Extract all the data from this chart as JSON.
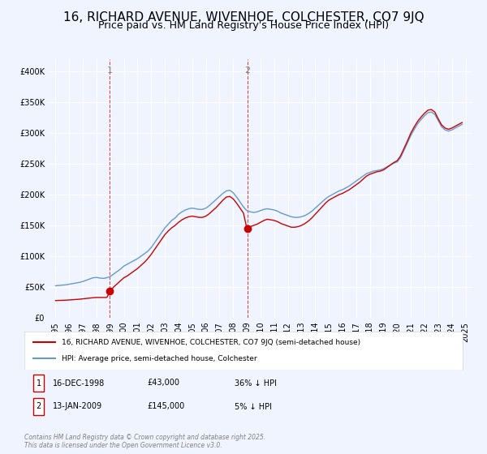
{
  "title": "16, RICHARD AVENUE, WIVENHOE, COLCHESTER, CO7 9JQ",
  "subtitle": "Price paid vs. HM Land Registry's House Price Index (HPI)",
  "title_fontsize": 11,
  "subtitle_fontsize": 9,
  "background_color": "#f0f4ff",
  "plot_bg_color": "#f0f4ff",
  "legend_entry1": "16, RICHARD AVENUE, WIVENHOE, COLCHESTER, CO7 9JQ (semi-detached house)",
  "legend_entry2": "HPI: Average price, semi-detached house, Colchester",
  "footnote": "Contains HM Land Registry data © Crown copyright and database right 2025.\nThis data is licensed under the Open Government Licence v3.0.",
  "annotation1_label": "1",
  "annotation1_date": "16-DEC-1998",
  "annotation1_price": "£43,000",
  "annotation1_hpi": "36% ↓ HPI",
  "annotation2_label": "2",
  "annotation2_date": "13-JAN-2009",
  "annotation2_price": "£145,000",
  "annotation2_hpi": "5% ↓ HPI",
  "sale1_x": 1998.96,
  "sale1_y": 43000,
  "sale2_x": 2009.04,
  "sale2_y": 145000,
  "red_color": "#cc0000",
  "blue_color": "#6699cc",
  "hpi_years": [
    1995,
    1995.25,
    1995.5,
    1995.75,
    1996,
    1996.25,
    1996.5,
    1996.75,
    1997,
    1997.25,
    1997.5,
    1997.75,
    1998,
    1998.25,
    1998.5,
    1998.75,
    1999,
    1999.25,
    1999.5,
    1999.75,
    2000,
    2000.25,
    2000.5,
    2000.75,
    2001,
    2001.25,
    2001.5,
    2001.75,
    2002,
    2002.25,
    2002.5,
    2002.75,
    2003,
    2003.25,
    2003.5,
    2003.75,
    2004,
    2004.25,
    2004.5,
    2004.75,
    2005,
    2005.25,
    2005.5,
    2005.75,
    2006,
    2006.25,
    2006.5,
    2006.75,
    2007,
    2007.25,
    2007.5,
    2007.75,
    2008,
    2008.25,
    2008.5,
    2008.75,
    2009,
    2009.25,
    2009.5,
    2009.75,
    2010,
    2010.25,
    2010.5,
    2010.75,
    2011,
    2011.25,
    2011.5,
    2011.75,
    2012,
    2012.25,
    2012.5,
    2012.75,
    2013,
    2013.25,
    2013.5,
    2013.75,
    2014,
    2014.25,
    2014.5,
    2014.75,
    2015,
    2015.25,
    2015.5,
    2015.75,
    2016,
    2016.25,
    2016.5,
    2016.75,
    2017,
    2017.25,
    2017.5,
    2017.75,
    2018,
    2018.25,
    2018.5,
    2018.75,
    2019,
    2019.25,
    2019.5,
    2019.75,
    2020,
    2020.25,
    2020.5,
    2020.75,
    2021,
    2021.25,
    2021.5,
    2021.75,
    2022,
    2022.25,
    2022.5,
    2022.75,
    2023,
    2023.25,
    2023.5,
    2023.75,
    2024,
    2024.25,
    2024.5,
    2024.75
  ],
  "hpi_values": [
    52000,
    52500,
    53000,
    53500,
    54500,
    55500,
    56500,
    57500,
    59000,
    61000,
    63000,
    65000,
    65500,
    64500,
    64000,
    65000,
    67000,
    71000,
    75000,
    79000,
    84000,
    87000,
    90000,
    93000,
    96000,
    100000,
    104000,
    108000,
    114000,
    122000,
    130000,
    138000,
    146000,
    152000,
    158000,
    162000,
    168000,
    172000,
    175000,
    177000,
    178000,
    177000,
    176000,
    176000,
    178000,
    182000,
    187000,
    192000,
    197000,
    202000,
    206000,
    207000,
    203000,
    196000,
    188000,
    180000,
    174000,
    172000,
    171000,
    172000,
    174000,
    176000,
    177000,
    176000,
    175000,
    173000,
    170000,
    168000,
    166000,
    164000,
    163000,
    163000,
    164000,
    166000,
    169000,
    173000,
    178000,
    183000,
    188000,
    193000,
    197000,
    200000,
    203000,
    206000,
    208000,
    211000,
    214000,
    218000,
    222000,
    226000,
    230000,
    234000,
    236000,
    238000,
    239000,
    240000,
    242000,
    245000,
    248000,
    251000,
    253000,
    260000,
    272000,
    284000,
    296000,
    306000,
    315000,
    322000,
    328000,
    333000,
    334000,
    330000,
    320000,
    310000,
    305000,
    303000,
    305000,
    308000,
    311000,
    314000
  ],
  "red_years": [
    1995,
    1995.25,
    1995.5,
    1995.75,
    1996,
    1996.25,
    1996.5,
    1996.75,
    1997,
    1997.25,
    1997.5,
    1997.75,
    1998,
    1998.25,
    1998.5,
    1998.75,
    1999,
    1999.25,
    1999.5,
    1999.75,
    2000,
    2000.25,
    2000.5,
    2000.75,
    2001,
    2001.25,
    2001.5,
    2001.75,
    2002,
    2002.25,
    2002.5,
    2002.75,
    2003,
    2003.25,
    2003.5,
    2003.75,
    2004,
    2004.25,
    2004.5,
    2004.75,
    2005,
    2005.25,
    2005.5,
    2005.75,
    2006,
    2006.25,
    2006.5,
    2006.75,
    2007,
    2007.25,
    2007.5,
    2007.75,
    2008,
    2008.25,
    2008.5,
    2008.75,
    2009,
    2009.25,
    2009.5,
    2009.75,
    2010,
    2010.25,
    2010.5,
    2010.75,
    2011,
    2011.25,
    2011.5,
    2011.75,
    2012,
    2012.25,
    2012.5,
    2012.75,
    2013,
    2013.25,
    2013.5,
    2013.75,
    2014,
    2014.25,
    2014.5,
    2014.75,
    2015,
    2015.25,
    2015.5,
    2015.75,
    2016,
    2016.25,
    2016.5,
    2016.75,
    2017,
    2017.25,
    2017.5,
    2017.75,
    2018,
    2018.25,
    2018.5,
    2018.75,
    2019,
    2019.25,
    2019.5,
    2019.75,
    2020,
    2020.25,
    2020.5,
    2020.75,
    2021,
    2021.25,
    2021.5,
    2021.75,
    2022,
    2022.25,
    2022.5,
    2022.75,
    2023,
    2023.25,
    2023.5,
    2023.75,
    2024,
    2024.25,
    2024.5,
    2024.75
  ],
  "red_values": [
    28000,
    28200,
    28400,
    28600,
    29000,
    29400,
    29800,
    30200,
    30800,
    31400,
    32000,
    32600,
    33000,
    33000,
    33000,
    33000,
    43000,
    50000,
    55000,
    60000,
    65000,
    68000,
    72000,
    76000,
    80000,
    85000,
    90000,
    96000,
    103000,
    111000,
    119000,
    127000,
    135000,
    141000,
    146000,
    150000,
    155000,
    159000,
    162000,
    164000,
    165000,
    164000,
    163000,
    163000,
    165000,
    169000,
    174000,
    179000,
    185000,
    191000,
    196000,
    197000,
    193000,
    186000,
    178000,
    170000,
    145000,
    148000,
    150000,
    152000,
    155000,
    158000,
    160000,
    159000,
    158000,
    156000,
    153000,
    151000,
    149000,
    147000,
    147000,
    148000,
    150000,
    153000,
    157000,
    162000,
    168000,
    174000,
    180000,
    186000,
    191000,
    194000,
    197000,
    200000,
    202000,
    205000,
    208000,
    212000,
    216000,
    220000,
    225000,
    230000,
    233000,
    235000,
    237000,
    238000,
    240000,
    244000,
    248000,
    252000,
    255000,
    263000,
    275000,
    287000,
    300000,
    310000,
    319000,
    326000,
    332000,
    337000,
    338000,
    334000,
    323000,
    313000,
    308000,
    306000,
    308000,
    311000,
    314000,
    317000
  ],
  "ylim": [
    0,
    420000
  ],
  "xlim": [
    1994.5,
    2025.5
  ],
  "yticks": [
    0,
    50000,
    100000,
    150000,
    200000,
    250000,
    300000,
    350000,
    400000
  ],
  "xtick_labels": [
    "1995",
    "1996",
    "1997",
    "1998",
    "1999",
    "2000",
    "2001",
    "2002",
    "2003",
    "2004",
    "2005",
    "2006",
    "2007",
    "2008",
    "2009",
    "2010",
    "2011",
    "2012",
    "2013",
    "2014",
    "2015",
    "2016",
    "2017",
    "2018",
    "2019",
    "2020",
    "2021",
    "2022",
    "2023",
    "2024",
    "2025"
  ]
}
